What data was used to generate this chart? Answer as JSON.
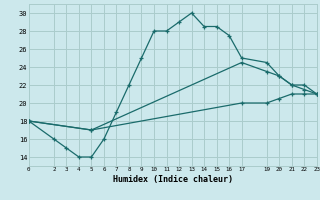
{
  "xlabel": "Humidex (Indice chaleur)",
  "bg_color": "#cce8ec",
  "grid_color": "#aacccc",
  "line_color": "#1a6b6b",
  "xlim": [
    0,
    23
  ],
  "ylim": [
    13,
    31
  ],
  "xticks": [
    0,
    2,
    3,
    4,
    5,
    6,
    7,
    8,
    9,
    10,
    11,
    12,
    13,
    14,
    15,
    16,
    17,
    19,
    20,
    21,
    22,
    23
  ],
  "yticks": [
    14,
    16,
    18,
    20,
    22,
    24,
    26,
    28,
    30
  ],
  "line1_x": [
    0,
    2,
    3,
    4,
    5,
    6,
    7,
    8,
    9,
    10,
    11,
    12,
    13,
    14,
    15,
    16,
    17,
    19,
    20,
    21,
    22,
    23
  ],
  "line1_y": [
    18,
    16,
    15,
    14,
    14,
    16,
    19,
    22,
    25,
    28,
    28,
    29,
    30,
    28.5,
    28.5,
    27.5,
    25,
    24.5,
    23,
    22,
    21.5,
    21
  ],
  "line2_x": [
    0,
    5,
    17,
    19,
    20,
    21,
    22,
    23
  ],
  "line2_y": [
    18,
    17,
    24.5,
    23.5,
    23,
    22,
    22,
    21
  ],
  "line3_x": [
    0,
    5,
    17,
    19,
    20,
    21,
    22,
    23
  ],
  "line3_y": [
    18,
    17,
    20,
    20,
    20.5,
    21,
    21,
    21
  ]
}
